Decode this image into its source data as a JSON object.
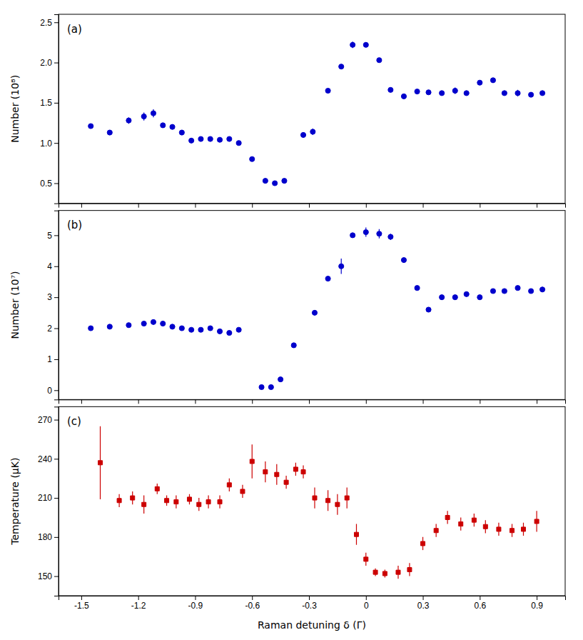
{
  "chart_data": [
    {
      "type": "scatter",
      "annotations": [
        "(a)"
      ],
      "ylabel": "Number (10⁸)",
      "xlim": [
        -1.62,
        1.05
      ],
      "xticks": [
        -1.5,
        -1.2,
        -0.9,
        -0.6,
        -0.3,
        0.0,
        0.3,
        0.6,
        0.9
      ],
      "ylim": [
        0.25,
        2.6
      ],
      "yticks": [
        {
          "value": 0.5,
          "label": "0.5"
        },
        {
          "value": 1.0,
          "label": "1.0"
        },
        {
          "value": 1.5,
          "label": "1.5"
        },
        {
          "value": 2.0,
          "label": "2.0"
        },
        {
          "value": 2.5,
          "label": "2.5"
        }
      ],
      "color": "#0000cc",
      "marker": "circle",
      "grid": false,
      "tick_labels": "y",
      "x": [
        -1.45,
        -1.35,
        -1.25,
        -1.17,
        -1.12,
        -1.07,
        -1.02,
        -0.97,
        -0.92,
        -0.87,
        -0.82,
        -0.77,
        -0.72,
        -0.67,
        -0.6,
        -0.53,
        -0.48,
        -0.43,
        -0.33,
        -0.28,
        -0.2,
        -0.13,
        -0.07,
        0.0,
        0.07,
        0.13,
        0.2,
        0.27,
        0.33,
        0.4,
        0.47,
        0.53,
        0.6,
        0.67,
        0.73,
        0.8,
        0.87,
        0.93
      ],
      "values": [
        1.21,
        1.13,
        1.28,
        1.33,
        1.37,
        1.22,
        1.2,
        1.13,
        1.03,
        1.05,
        1.05,
        1.04,
        1.05,
        1.0,
        0.8,
        0.53,
        0.5,
        0.53,
        1.1,
        1.14,
        1.65,
        1.95,
        2.22,
        2.22,
        2.03,
        1.66,
        1.58,
        1.64,
        1.63,
        1.62,
        1.65,
        1.62,
        1.75,
        1.78,
        1.62,
        1.62,
        1.6,
        1.62
      ],
      "yerr": [
        0.0,
        0.0,
        0.04,
        0.05,
        0.05,
        0.03,
        0.0,
        0.0,
        0.0,
        0.0,
        0.0,
        0.0,
        0.0,
        0.0,
        0.0,
        0.0,
        0.0,
        0.0,
        0.03,
        0.04,
        0.0,
        0.0,
        0.04,
        0.03,
        0.0,
        0.0,
        0.0,
        0.0,
        0.0,
        0.0,
        0.04,
        0.0,
        0.0,
        0.0,
        0.0,
        0.04,
        0.0,
        0.0
      ]
    },
    {
      "type": "scatter",
      "annotations": [
        "(b)"
      ],
      "ylabel": "Number (10⁷)",
      "xlim": [
        -1.62,
        1.05
      ],
      "xticks": [
        -1.5,
        -1.2,
        -0.9,
        -0.6,
        -0.3,
        0.0,
        0.3,
        0.6,
        0.9
      ],
      "ylim": [
        -0.3,
        5.8
      ],
      "yticks": [
        0,
        1,
        2,
        3,
        4,
        5
      ],
      "color": "#0000cc",
      "marker": "circle",
      "grid": false,
      "tick_labels": "y",
      "x": [
        -1.45,
        -1.35,
        -1.25,
        -1.17,
        -1.12,
        -1.07,
        -1.02,
        -0.97,
        -0.92,
        -0.87,
        -0.82,
        -0.77,
        -0.72,
        -0.67,
        -0.55,
        -0.5,
        -0.45,
        -0.38,
        -0.27,
        -0.2,
        -0.13,
        -0.07,
        0.0,
        0.07,
        0.13,
        0.2,
        0.27,
        0.33,
        0.4,
        0.47,
        0.53,
        0.6,
        0.67,
        0.73,
        0.8,
        0.87,
        0.93
      ],
      "values": [
        2.0,
        2.05,
        2.1,
        2.15,
        2.2,
        2.15,
        2.05,
        2.0,
        1.95,
        1.95,
        2.0,
        1.9,
        1.85,
        1.95,
        0.1,
        0.1,
        0.35,
        1.45,
        2.5,
        3.6,
        4.0,
        5.0,
        5.1,
        5.05,
        4.95,
        4.2,
        3.3,
        2.6,
        3.0,
        3.0,
        3.1,
        3.0,
        3.2,
        3.2,
        3.3,
        3.2,
        3.25
      ],
      "yerr": [
        0.0,
        0.0,
        0.0,
        0.0,
        0.0,
        0.0,
        0.0,
        0.0,
        0.0,
        0.0,
        0.0,
        0.0,
        0.0,
        0.0,
        0.0,
        0.0,
        0.0,
        0.0,
        0.0,
        0.0,
        0.25,
        0.0,
        0.15,
        0.15,
        0.1,
        0.0,
        0.0,
        0.0,
        0.0,
        0.0,
        0.0,
        0.0,
        0.0,
        0.0,
        0.0,
        0.0,
        0.08
      ]
    },
    {
      "type": "scatter",
      "annotations": [
        "(c)"
      ],
      "ylabel": "Temperature (μK)",
      "xlabel": "Raman detuning δ (Γ)",
      "xlim": [
        -1.62,
        1.05
      ],
      "xticks": [
        -1.5,
        -1.2,
        -0.9,
        -0.6,
        -0.3,
        0.0,
        0.3,
        0.6,
        0.9
      ],
      "ylim": [
        135,
        280
      ],
      "yticks": [
        150,
        180,
        210,
        240,
        270
      ],
      "color": "#cc0000",
      "marker": "square",
      "grid": false,
      "tick_labels": true,
      "x": [
        -1.4,
        -1.3,
        -1.23,
        -1.17,
        -1.1,
        -1.05,
        -1.0,
        -0.93,
        -0.88,
        -0.83,
        -0.77,
        -0.72,
        -0.65,
        -0.6,
        -0.53,
        -0.47,
        -0.42,
        -0.37,
        -0.33,
        -0.27,
        -0.2,
        -0.15,
        -0.1,
        -0.05,
        0.0,
        0.05,
        0.1,
        0.17,
        0.23,
        0.3,
        0.37,
        0.43,
        0.5,
        0.57,
        0.63,
        0.7,
        0.77,
        0.83,
        0.9
      ],
      "values": [
        237,
        208,
        210,
        205,
        217,
        208,
        207,
        209,
        205,
        207,
        207,
        220,
        215,
        238,
        230,
        228,
        222,
        232,
        230,
        210,
        208,
        205,
        210,
        182,
        163,
        153,
        152,
        153,
        155,
        175,
        185,
        195,
        190,
        193,
        188,
        186,
        185,
        186,
        192
      ],
      "yerr": [
        28,
        5,
        5,
        7,
        4,
        4,
        5,
        4,
        5,
        5,
        5,
        5,
        5,
        13,
        8,
        8,
        5,
        5,
        5,
        8,
        8,
        8,
        8,
        8,
        5,
        3,
        3,
        5,
        5,
        5,
        5,
        5,
        5,
        5,
        5,
        5,
        5,
        5,
        8
      ]
    }
  ]
}
